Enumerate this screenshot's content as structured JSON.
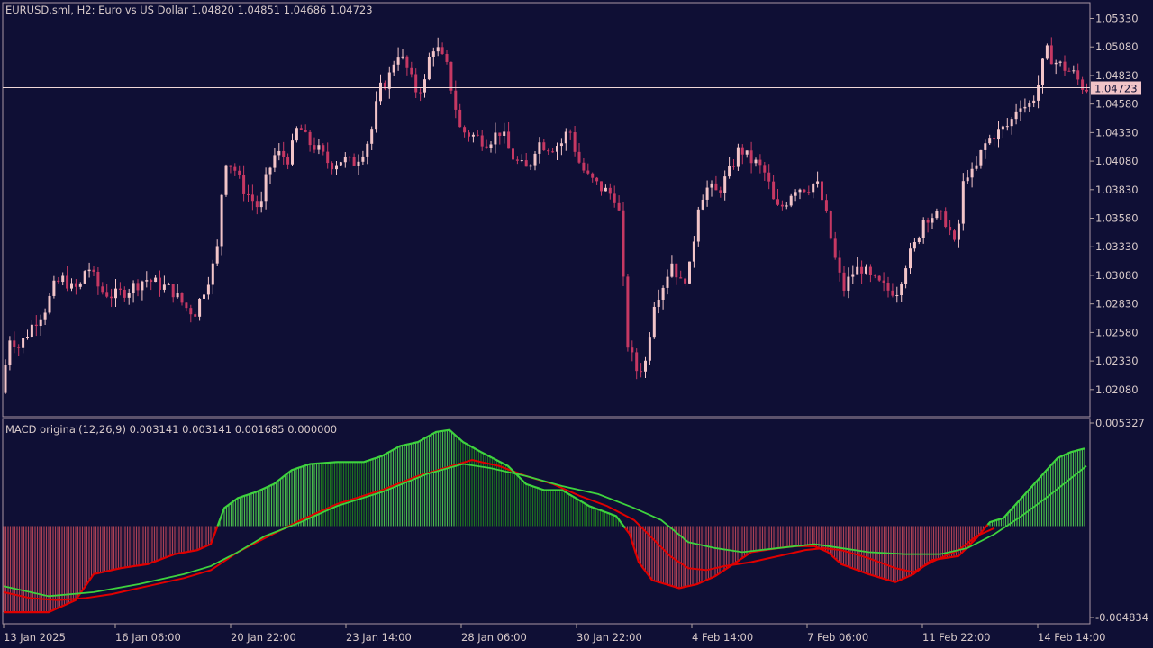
{
  "header": {
    "symbol_info": "EURUSD.sml, H2:  Euro vs US Dollar  1.04820 1.04851 1.04686 1.04723",
    "macd_info": "MACD original(12,26,9) 0.003141 0.003141 0.001685 0.000000"
  },
  "colors": {
    "background": "#0f0f35",
    "bull_candle": "#f2c4c8",
    "bear_candle": "#c63863",
    "hist_positive": "#4cc44c",
    "hist_positive_dark": "#1f7a1f",
    "hist_negative": "#c84a5a",
    "macd_line_pos": "#3ed23e",
    "macd_line_neg": "#e00000",
    "signal_line": "#e00000",
    "current_price_line": "#f0d8d8",
    "current_price_tag": "#f2c4c8"
  },
  "chart_data": [
    {
      "type": "candlestick",
      "title": "EURUSD.sml, H2:  Euro vs US Dollar  1.04820 1.04851 1.04686 1.04723",
      "y_ticks": [
        "1.05330",
        "1.05080",
        "1.04830",
        "1.04580",
        "1.04330",
        "1.04080",
        "1.03830",
        "1.03580",
        "1.03330",
        "1.03080",
        "1.02830",
        "1.02580",
        "1.02330",
        "1.02080"
      ],
      "ylim": [
        1.0185,
        1.0546
      ],
      "current_price": "1.04723",
      "x_ticks": [
        "13 Jan 2025",
        "16 Jan 06:00",
        "20 Jan 22:00",
        "23 Jan 14:00",
        "28 Jan 06:00",
        "30 Jan 22:00",
        "4 Feb 14:00",
        "7 Feb 06:00",
        "11 Feb 22:00",
        "14 Feb 14:00"
      ],
      "close_path": [
        [
          0,
          1.0205
        ],
        [
          10,
          1.0255
        ],
        [
          20,
          1.0245
        ],
        [
          35,
          1.0265
        ],
        [
          50,
          1.028
        ],
        [
          60,
          1.03
        ],
        [
          70,
          1.0305
        ],
        [
          80,
          1.0295
        ],
        [
          90,
          1.03
        ],
        [
          95,
          1.032
        ],
        [
          100,
          1.031
        ],
        [
          110,
          1.0295
        ],
        [
          125,
          1.029
        ],
        [
          140,
          1.0295
        ],
        [
          150,
          1.03
        ],
        [
          160,
          1.0305
        ],
        [
          175,
          1.03
        ],
        [
          190,
          1.0295
        ],
        [
          205,
          1.028
        ],
        [
          215,
          1.0275
        ],
        [
          225,
          1.0295
        ],
        [
          235,
          1.0315
        ],
        [
          240,
          1.033
        ],
        [
          245,
          1.038
        ],
        [
          250,
          1.041
        ],
        [
          260,
          1.04
        ],
        [
          268,
          1.0385
        ],
        [
          278,
          1.0375
        ],
        [
          288,
          1.0365
        ],
        [
          295,
          1.0395
        ],
        [
          305,
          1.0415
        ],
        [
          320,
          1.041
        ],
        [
          330,
          1.044
        ],
        [
          340,
          1.0425
        ],
        [
          350,
          1.042
        ],
        [
          365,
          1.0405
        ],
        [
          380,
          1.041
        ],
        [
          390,
          1.0405
        ],
        [
          400,
          1.0415
        ],
        [
          410,
          1.043
        ],
        [
          420,
          1.047
        ],
        [
          430,
          1.048
        ],
        [
          440,
          1.0505
        ],
        [
          450,
          1.049
        ],
        [
          460,
          1.047
        ],
        [
          470,
          1.0475
        ],
        [
          478,
          1.051
        ],
        [
          485,
          1.0505
        ],
        [
          495,
          1.049
        ],
        [
          502,
          1.0465
        ],
        [
          510,
          1.0435
        ],
        [
          525,
          1.043
        ],
        [
          540,
          1.0425
        ],
        [
          555,
          1.0435
        ],
        [
          565,
          1.0415
        ],
        [
          575,
          1.0405
        ],
        [
          585,
          1.04
        ],
        [
          595,
          1.0425
        ],
        [
          610,
          1.042
        ],
        [
          625,
          1.0425
        ],
        [
          630,
          1.044
        ],
        [
          640,
          1.041
        ],
        [
          650,
          1.0395
        ],
        [
          665,
          1.0385
        ],
        [
          675,
          1.038
        ],
        [
          685,
          1.0375
        ],
        [
          695,
          1.025
        ],
        [
          705,
          1.0225
        ],
        [
          715,
          1.023
        ],
        [
          725,
          1.0285
        ],
        [
          735,
          1.03
        ],
        [
          745,
          1.032
        ],
        [
          755,
          1.03
        ],
        [
          765,
          1.0315
        ],
        [
          775,
          1.0375
        ],
        [
          785,
          1.0385
        ],
        [
          795,
          1.038
        ],
        [
          810,
          1.04
        ],
        [
          820,
          1.042
        ],
        [
          830,
          1.041
        ],
        [
          840,
          1.0405
        ],
        [
          850,
          1.0395
        ],
        [
          860,
          1.0365
        ],
        [
          870,
          1.037
        ],
        [
          880,
          1.0385
        ],
        [
          895,
          1.0385
        ],
        [
          905,
          1.039
        ],
        [
          915,
          1.0365
        ],
        [
          925,
          1.0325
        ],
        [
          935,
          1.0295
        ],
        [
          945,
          1.031
        ],
        [
          955,
          1.0315
        ],
        [
          965,
          1.0305
        ],
        [
          975,
          1.03
        ],
        [
          985,
          1.0295
        ],
        [
          995,
          1.0295
        ],
        [
          1005,
          1.032
        ],
        [
          1015,
          1.0335
        ],
        [
          1025,
          1.036
        ],
        [
          1040,
          1.036
        ],
        [
          1050,
          1.0355
        ],
        [
          1060,
          1.033
        ],
        [
          1070,
          1.04
        ],
        [
          1080,
          1.0395
        ],
        [
          1090,
          1.042
        ],
        [
          1100,
          1.043
        ],
        [
          1110,
          1.0435
        ],
        [
          1120,
          1.044
        ],
        [
          1130,
          1.046
        ],
        [
          1140,
          1.0455
        ],
        [
          1150,
          1.047
        ],
        [
          1160,
          1.0505
        ],
        [
          1170,
          1.0495
        ],
        [
          1180,
          1.049
        ],
        [
          1190,
          1.0485
        ],
        [
          1202,
          1.0472
        ]
      ]
    },
    {
      "type": "bar+line",
      "title": "MACD original(12,26,9) 0.003141 0.003141 0.001685 0.000000",
      "y_ticks": [
        "0.005327",
        "-0.004834"
      ],
      "ylim": [
        -0.004834,
        0.005327
      ],
      "histogram_path": [
        [
          0,
          -0.0043
        ],
        [
          50,
          -0.0043
        ],
        [
          80,
          -0.0037
        ],
        [
          100,
          -0.0024
        ],
        [
          130,
          -0.0021
        ],
        [
          160,
          -0.0019
        ],
        [
          190,
          -0.0014
        ],
        [
          215,
          -0.0012
        ],
        [
          230,
          -0.0009
        ],
        [
          245,
          0.0009
        ],
        [
          260,
          0.0014
        ],
        [
          280,
          0.0017
        ],
        [
          300,
          0.0021
        ],
        [
          320,
          0.0028
        ],
        [
          340,
          0.0031
        ],
        [
          370,
          0.0032
        ],
        [
          400,
          0.0032
        ],
        [
          420,
          0.0035
        ],
        [
          440,
          0.004
        ],
        [
          460,
          0.0042
        ],
        [
          480,
          0.0047
        ],
        [
          495,
          0.0048
        ],
        [
          510,
          0.0042
        ],
        [
          530,
          0.0037
        ],
        [
          560,
          0.003
        ],
        [
          580,
          0.0021
        ],
        [
          600,
          0.0018
        ],
        [
          620,
          0.0018
        ],
        [
          650,
          0.001
        ],
        [
          680,
          0.0005
        ],
        [
          695,
          -0.0004
        ],
        [
          705,
          -0.0018
        ],
        [
          720,
          -0.0027
        ],
        [
          750,
          -0.0031
        ],
        [
          770,
          -0.0029
        ],
        [
          790,
          -0.0025
        ],
        [
          810,
          -0.0019
        ],
        [
          830,
          -0.0013
        ],
        [
          860,
          -0.0011
        ],
        [
          880,
          -0.001
        ],
        [
          900,
          -0.001
        ],
        [
          915,
          -0.0013
        ],
        [
          930,
          -0.0019
        ],
        [
          960,
          -0.0024
        ],
        [
          990,
          -0.0028
        ],
        [
          1010,
          -0.0024
        ],
        [
          1030,
          -0.0017
        ],
        [
          1060,
          -0.0015
        ],
        [
          1080,
          -0.0006
        ],
        [
          1095,
          0.0002
        ],
        [
          1110,
          0.0004
        ],
        [
          1130,
          0.0014
        ],
        [
          1150,
          0.0024
        ],
        [
          1170,
          0.0034
        ],
        [
          1185,
          0.0037
        ],
        [
          1202,
          0.0039
        ]
      ],
      "macd_line_path": [
        [
          0,
          -0.003
        ],
        [
          50,
          -0.0035
        ],
        [
          100,
          -0.0033
        ],
        [
          150,
          -0.0029
        ],
        [
          200,
          -0.0024
        ],
        [
          230,
          -0.002
        ],
        [
          260,
          -0.0013
        ],
        [
          290,
          -0.0005
        ],
        [
          330,
          0.0002
        ],
        [
          370,
          0.001
        ],
        [
          420,
          0.0017
        ],
        [
          470,
          0.0026
        ],
        [
          510,
          0.0031
        ],
        [
          540,
          0.0029
        ],
        [
          580,
          0.0025
        ],
        [
          620,
          0.002
        ],
        [
          660,
          0.0016
        ],
        [
          700,
          0.0009
        ],
        [
          730,
          0.0003
        ],
        [
          760,
          -0.0008
        ],
        [
          790,
          -0.0011
        ],
        [
          820,
          -0.0013
        ],
        [
          860,
          -0.0011
        ],
        [
          900,
          -0.0009
        ],
        [
          930,
          -0.0011
        ],
        [
          960,
          -0.0013
        ],
        [
          1000,
          -0.0014
        ],
        [
          1040,
          -0.0014
        ],
        [
          1070,
          -0.0011
        ],
        [
          1100,
          -0.0004
        ],
        [
          1130,
          0.0005
        ],
        [
          1160,
          0.0015
        ],
        [
          1202,
          0.003
        ]
      ],
      "signal_line_path": [
        [
          0,
          -0.0033
        ],
        [
          30,
          -0.0036
        ],
        [
          60,
          -0.0037
        ],
        [
          90,
          -0.0036
        ],
        [
          120,
          -0.0034
        ],
        [
          160,
          -0.003
        ],
        [
          200,
          -0.0026
        ],
        [
          230,
          -0.0022
        ],
        [
          260,
          -0.0013
        ],
        [
          290,
          -0.0006
        ],
        [
          330,
          0.0003
        ],
        [
          370,
          0.0011
        ],
        [
          420,
          0.0018
        ],
        [
          460,
          0.0025
        ],
        [
          490,
          0.0029
        ],
        [
          520,
          0.0033
        ],
        [
          550,
          0.003
        ],
        [
          580,
          0.0025
        ],
        [
          610,
          0.0021
        ],
        [
          640,
          0.0015
        ],
        [
          670,
          0.001
        ],
        [
          700,
          0.0003
        ],
        [
          720,
          -0.0006
        ],
        [
          740,
          -0.0015
        ],
        [
          760,
          -0.0021
        ],
        [
          780,
          -0.0022
        ],
        [
          800,
          -0.002
        ],
        [
          830,
          -0.0018
        ],
        [
          860,
          -0.0015
        ],
        [
          890,
          -0.0012
        ],
        [
          910,
          -0.0011
        ],
        [
          930,
          -0.0012
        ],
        [
          960,
          -0.0016
        ],
        [
          990,
          -0.0021
        ],
        [
          1010,
          -0.0023
        ],
        [
          1030,
          -0.0018
        ],
        [
          1060,
          -0.0012
        ],
        [
          1080,
          -0.0005
        ],
        [
          1100,
          -0.0001
        ]
      ]
    }
  ]
}
